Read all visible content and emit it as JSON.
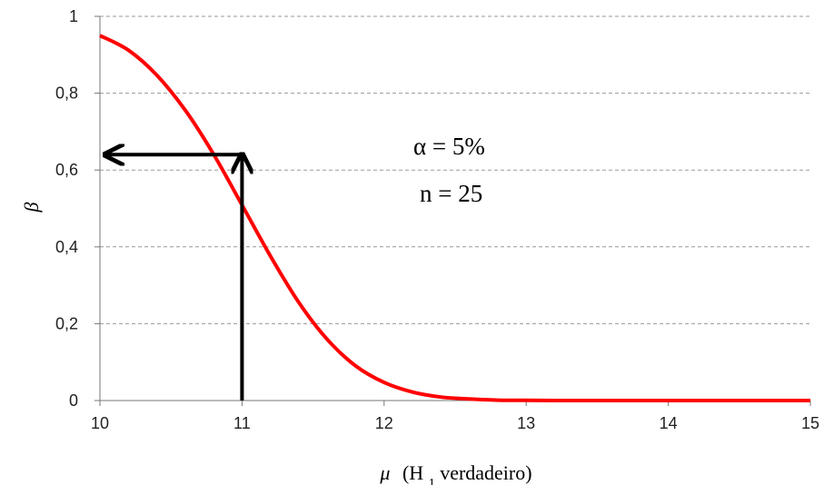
{
  "chart_data": {
    "type": "line",
    "title": "",
    "xlabel": {
      "symbol": "μ",
      "text_before_sub": "(H",
      "subscript": "1",
      "text_after_sub": " verdadeiro)"
    },
    "ylabel": "β",
    "xlim": [
      10,
      15
    ],
    "ylim": [
      0,
      1
    ],
    "x_ticks": [
      10,
      11,
      12,
      13,
      14,
      15
    ],
    "x_tick_labels": [
      "10",
      "11",
      "12",
      "13",
      "14",
      "15"
    ],
    "y_ticks": [
      0,
      0.2,
      0.4,
      0.6,
      0.8,
      1
    ],
    "y_tick_labels": [
      "0",
      "0,2",
      "0,4",
      "0,6",
      "0,8",
      "1"
    ],
    "grid": "horizontal dashed",
    "legend": "none",
    "series": [
      {
        "color": "#ff0000",
        "x": [
          10,
          10.2,
          10.4,
          10.6,
          10.8,
          11,
          11.2,
          11.4,
          11.6,
          11.8,
          12,
          12.2,
          12.4,
          12.6,
          12.8,
          13,
          13.2,
          13.4,
          13.6,
          13.8,
          14,
          14.5,
          15
        ],
        "y": [
          0.95,
          0.912,
          0.847,
          0.756,
          0.641,
          0.509,
          0.376,
          0.255,
          0.159,
          0.09,
          0.047,
          0.022,
          0.009,
          0.004,
          0.001,
          0.0004,
          0.0001,
          0,
          0,
          0,
          0,
          0,
          0
        ]
      }
    ],
    "annotations": {
      "math_lines": [
        "α = 5%",
        "n = 25"
      ],
      "arrow_up_x": 11,
      "arrow_left_y": 0.64
    }
  }
}
